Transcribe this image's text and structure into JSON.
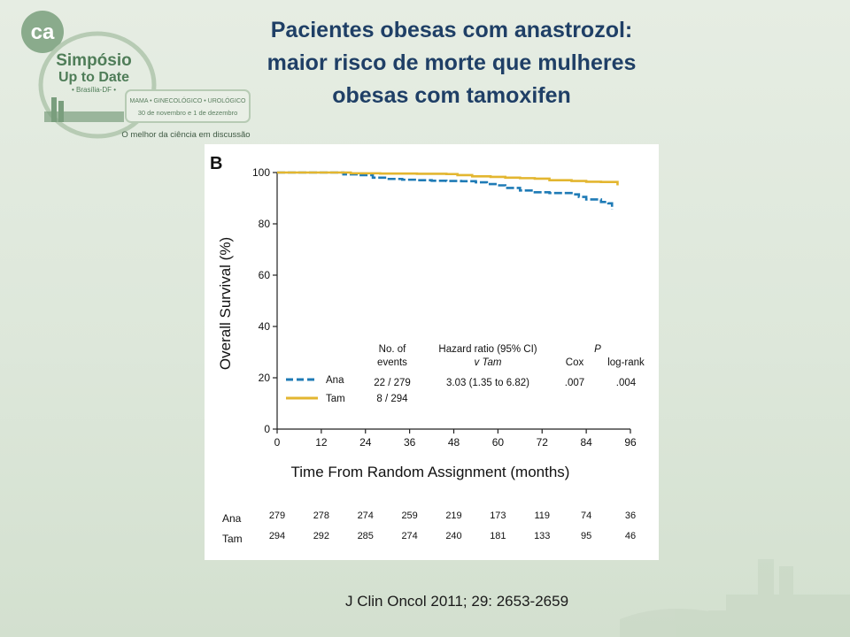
{
  "slide": {
    "title_lines": [
      "Pacientes obesas com anastrozol:",
      "maior risco de morte que mulheres",
      "obesas com tamoxifen"
    ],
    "citation": "J Clin Oncol 2011; 29: 2653-2659"
  },
  "logo": {
    "badge": "ca",
    "event_line1": "Simpósio",
    "event_line2": "Up to Date",
    "location": "• Brasília-DF •",
    "specialties": "MAMA • GINECOLÓGICO • UROLÓGICO",
    "dates": "30 de novembro e 1 de dezembro",
    "tagline": "O melhor da ciência em discussão",
    "colors": {
      "green": "#7a9e7e",
      "light": "#b7cbb4"
    }
  },
  "chart_data": {
    "type": "line",
    "panel_label": "B",
    "xlabel": "Time From Random Assignment (months)",
    "ylabel": "Overall Survival (%)",
    "xlim": [
      0,
      96
    ],
    "ylim": [
      0,
      100
    ],
    "xticks": [
      "0",
      "12",
      "24",
      "36",
      "48",
      "60",
      "72",
      "84",
      "96"
    ],
    "yticks": [
      "0",
      "20",
      "40",
      "60",
      "80",
      "100"
    ],
    "grid": false,
    "series": [
      {
        "name": "Ana",
        "color": "#1f7bb6",
        "style": "dashed-steps",
        "points": [
          [
            0,
            100
          ],
          [
            16,
            100
          ],
          [
            18,
            99.3
          ],
          [
            22,
            99
          ],
          [
            26,
            98
          ],
          [
            30,
            97.5
          ],
          [
            34,
            97.2
          ],
          [
            38,
            97
          ],
          [
            42,
            96.8
          ],
          [
            46,
            96.7
          ],
          [
            50,
            96.6
          ],
          [
            54,
            96.2
          ],
          [
            57,
            95.5
          ],
          [
            60,
            95
          ],
          [
            62,
            94
          ],
          [
            66,
            93
          ],
          [
            70,
            92.3
          ],
          [
            74,
            92
          ],
          [
            80,
            91.5
          ],
          [
            82,
            90.5
          ],
          [
            84,
            89.5
          ],
          [
            88,
            88.5
          ],
          [
            90,
            88
          ],
          [
            91,
            85.5
          ]
        ]
      },
      {
        "name": "Tam",
        "color": "#e3b630",
        "style": "solid-steps",
        "points": [
          [
            0,
            100
          ],
          [
            16,
            100
          ],
          [
            20,
            99.7
          ],
          [
            28,
            99.6
          ],
          [
            38,
            99.5
          ],
          [
            46,
            99.4
          ],
          [
            49,
            99
          ],
          [
            53,
            98.5
          ],
          [
            58,
            98.3
          ],
          [
            62,
            98
          ],
          [
            66,
            97.8
          ],
          [
            70,
            97.6
          ],
          [
            74,
            97
          ],
          [
            80,
            96.7
          ],
          [
            84,
            96.4
          ],
          [
            88,
            96.3
          ],
          [
            92,
            96.3
          ],
          [
            92.5,
            95
          ]
        ]
      }
    ],
    "legend_table": {
      "headers": {
        "events_line1": "No. of",
        "events_line2": "events",
        "hr_line1": "Hazard ratio (95% CI)",
        "hr_line2": "v Tam",
        "p": "P",
        "cox": "Cox",
        "logrank": "log-rank"
      },
      "rows": [
        {
          "label": "Ana",
          "events": "22 / 279",
          "hr": "3.03 (1.35 to 6.82)",
          "cox": ".007",
          "logrank": ".004"
        },
        {
          "label": "Tam",
          "events": "8 / 294",
          "hr": "",
          "cox": "",
          "logrank": ""
        }
      ]
    },
    "at_risk": [
      {
        "label": "Ana",
        "values": [
          "279",
          "278",
          "274",
          "259",
          "219",
          "173",
          "119",
          "74",
          "36"
        ]
      },
      {
        "label": "Tam",
        "values": [
          "294",
          "292",
          "285",
          "274",
          "240",
          "181",
          "133",
          "95",
          "46"
        ]
      }
    ]
  }
}
